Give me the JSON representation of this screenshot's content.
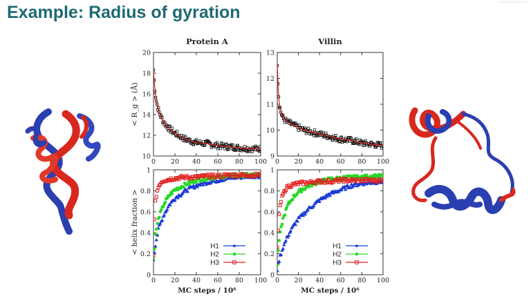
{
  "slide": {
    "title": "Example: Radius of gyration",
    "corner_text": "~~~~~~~~~~~"
  },
  "colors": {
    "title": "#1f6a72",
    "h1": "#1a3bd6",
    "h2": "#27d827",
    "h3": "#e0201e",
    "rg_fit": "#e0201e",
    "rg_points": "#111111",
    "protein_red": "#d8281e",
    "protein_blue": "#2a3fb0"
  },
  "images": {
    "left_protein": "protein-a-ribbon-structure",
    "right_protein": "villin-ribbon-structure"
  },
  "chart_data": [
    {
      "type": "scatter",
      "id": "protein-a-rg",
      "title": "Protein A",
      "xlabel": "",
      "ylabel": "< R_g > (Å)",
      "xlim": [
        0,
        100
      ],
      "ylim": [
        10,
        20
      ],
      "xticks": [
        "0",
        "20",
        "40",
        "60",
        "80",
        "100"
      ],
      "yticks": [
        "10",
        "12",
        "14",
        "16",
        "18",
        "20"
      ],
      "series": [
        {
          "role": "rg",
          "color": "#111111",
          "fit_color": "#e0201e",
          "x": [
            0,
            1,
            2,
            3,
            5,
            7,
            10,
            15,
            20,
            25,
            30,
            40,
            50,
            60,
            70,
            80,
            90,
            100
          ],
          "y": [
            18.3,
            16.8,
            15.8,
            15.1,
            14.3,
            13.8,
            13.2,
            12.6,
            12.2,
            11.9,
            11.6,
            11.3,
            11.2,
            11.0,
            10.9,
            10.8,
            10.7,
            10.7
          ]
        }
      ]
    },
    {
      "type": "scatter",
      "id": "villin-rg",
      "title": "Villin",
      "xlabel": "",
      "ylabel": "",
      "xlim": [
        0,
        100
      ],
      "ylim": [
        9,
        13
      ],
      "xticks": [
        "0",
        "20",
        "40",
        "60",
        "80",
        "100"
      ],
      "yticks": [
        "9",
        "10",
        "11",
        "12",
        "13"
      ],
      "series": [
        {
          "role": "rg",
          "color": "#111111",
          "fit_color": "#e0201e",
          "x": [
            0,
            1,
            2,
            3,
            5,
            7,
            10,
            15,
            20,
            25,
            30,
            40,
            50,
            60,
            70,
            80,
            90,
            100
          ],
          "y": [
            12.6,
            11.5,
            11.0,
            10.75,
            10.5,
            10.4,
            10.3,
            10.2,
            10.1,
            10.0,
            9.95,
            9.85,
            9.75,
            9.65,
            9.6,
            9.5,
            9.45,
            9.4
          ]
        }
      ]
    },
    {
      "type": "line",
      "id": "protein-a-helix",
      "title": "",
      "xlabel": "MC steps / 10⁶",
      "ylabel": "< helix fraction >",
      "xlim": [
        0,
        100
      ],
      "ylim": [
        0,
        1
      ],
      "xticks": [
        "0",
        "20",
        "40",
        "60",
        "80",
        "100"
      ],
      "yticks": [
        "0",
        "0.2",
        "0.4",
        "0.6",
        "0.8",
        "1"
      ],
      "legend": "bottom-right",
      "series": [
        {
          "name": "H1",
          "color": "#1a3bd6",
          "marker": "triangle",
          "x": [
            0,
            2,
            5,
            10,
            15,
            20,
            30,
            40,
            50,
            60,
            70,
            80,
            90,
            100
          ],
          "y": [
            0.15,
            0.3,
            0.45,
            0.58,
            0.67,
            0.73,
            0.8,
            0.85,
            0.88,
            0.9,
            0.92,
            0.93,
            0.94,
            0.94
          ]
        },
        {
          "name": "H2",
          "color": "#27d827",
          "marker": "circle",
          "x": [
            0,
            2,
            5,
            10,
            15,
            20,
            30,
            40,
            50,
            60,
            70,
            80,
            90,
            100
          ],
          "y": [
            0.15,
            0.4,
            0.55,
            0.68,
            0.76,
            0.81,
            0.86,
            0.9,
            0.92,
            0.93,
            0.94,
            0.95,
            0.95,
            0.95
          ]
        },
        {
          "name": "H3",
          "color": "#e0201e",
          "marker": "square",
          "x": [
            0,
            1,
            2,
            4,
            6,
            8,
            10,
            15,
            20,
            30,
            40,
            50,
            60,
            70,
            80,
            90,
            100
          ],
          "y": [
            0.2,
            0.55,
            0.72,
            0.82,
            0.87,
            0.89,
            0.9,
            0.91,
            0.92,
            0.93,
            0.93,
            0.94,
            0.94,
            0.95,
            0.95,
            0.95,
            0.95
          ]
        }
      ]
    },
    {
      "type": "line",
      "id": "villin-helix",
      "title": "",
      "xlabel": "MC steps / 10⁶",
      "ylabel": "",
      "xlim": [
        0,
        100
      ],
      "ylim": [
        0,
        1
      ],
      "xticks": [
        "0",
        "20",
        "40",
        "60",
        "80",
        "100"
      ],
      "yticks": [
        "0",
        "0.2",
        "0.4",
        "0.6",
        "0.8",
        "1"
      ],
      "legend": "bottom-right",
      "series": [
        {
          "name": "H1",
          "color": "#1a3bd6",
          "marker": "triangle",
          "x": [
            0,
            2,
            5,
            10,
            15,
            20,
            30,
            40,
            50,
            60,
            70,
            80,
            90,
            100
          ],
          "y": [
            0.05,
            0.15,
            0.25,
            0.37,
            0.46,
            0.53,
            0.63,
            0.71,
            0.77,
            0.81,
            0.85,
            0.87,
            0.88,
            0.89
          ]
        },
        {
          "name": "H2",
          "color": "#27d827",
          "marker": "circle",
          "x": [
            0,
            2,
            5,
            10,
            15,
            20,
            30,
            40,
            50,
            60,
            70,
            80,
            90,
            100
          ],
          "y": [
            0.1,
            0.35,
            0.52,
            0.66,
            0.74,
            0.79,
            0.85,
            0.89,
            0.91,
            0.92,
            0.93,
            0.93,
            0.94,
            0.94
          ]
        },
        {
          "name": "H3",
          "color": "#e0201e",
          "marker": "square",
          "x": [
            0,
            1,
            2,
            4,
            6,
            8,
            10,
            15,
            20,
            30,
            40,
            50,
            60,
            70,
            80,
            90,
            100
          ],
          "y": [
            0.25,
            0.45,
            0.6,
            0.72,
            0.78,
            0.82,
            0.84,
            0.86,
            0.87,
            0.88,
            0.89,
            0.89,
            0.9,
            0.9,
            0.9,
            0.9,
            0.9
          ]
        }
      ]
    }
  ]
}
